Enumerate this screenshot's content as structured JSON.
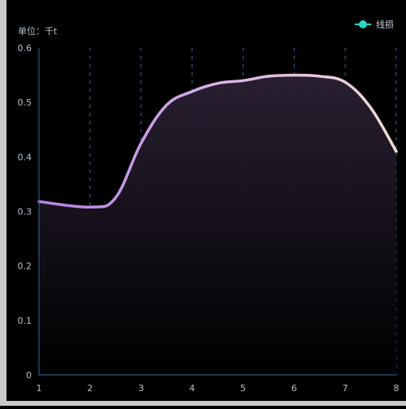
{
  "chart_data": {
    "type": "area",
    "unit_label": "单位：千t",
    "x": [
      1,
      2,
      2.5,
      3,
      3.5,
      4,
      4.5,
      5,
      5.5,
      6,
      6.5,
      7,
      7.5,
      8
    ],
    "x_ticks": [
      "1",
      "2",
      "3",
      "4",
      "5",
      "6",
      "7",
      "8"
    ],
    "y_ticks": [
      "0",
      "0.1",
      "0.2",
      "0.3",
      "0.4",
      "0.5",
      "0.6"
    ],
    "ylim": [
      0,
      0.6
    ],
    "xlim": [
      1,
      8
    ],
    "series": [
      {
        "name": "线损",
        "values": [
          0.318,
          0.308,
          0.325,
          0.425,
          0.495,
          0.52,
          0.535,
          0.54,
          0.548,
          0.55,
          0.548,
          0.537,
          0.49,
          0.41
        ]
      }
    ],
    "legend_position": "top-right",
    "grid": "vertical-dashed",
    "colors": {
      "line_start": "#b47fe0",
      "line_end": "#f1dcd2",
      "legend_marker": "#2ed3c4",
      "axis": "#2f6d9a",
      "grid": "#2b6ea8",
      "tick_text": "#b7c0cc",
      "area_top": "#2a2033",
      "area_bottom": "#000000"
    }
  }
}
